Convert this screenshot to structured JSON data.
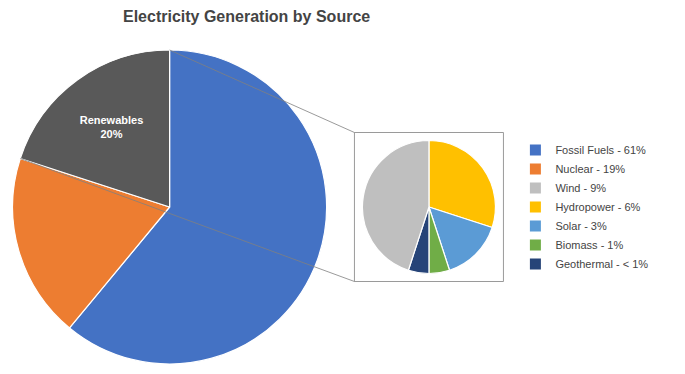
{
  "chart_data": [
    {
      "type": "pie",
      "title": "Electricity Generation by Source",
      "categories": [
        "Fossil Fuels - 61%",
        "Nuclear - 19%",
        null
      ],
      "values": [
        61,
        19,
        20
      ],
      "colors": [
        "#4472C4",
        "#ED7D31",
        "#595959"
      ],
      "value_labels": [
        null,
        null,
        "Renewables\n20%"
      ],
      "data_labels": true,
      "legend": "right"
    },
    {
      "type": "pie",
      "categories": [
        "Hydropower - 6%",
        "Solar - 3%",
        "Biomass - 1%",
        "Geothermal - < 1%",
        "Wind - 9%"
      ],
      "values": [
        6,
        3,
        1,
        1,
        9
      ],
      "colors": [
        "#FFC000",
        "#5B9BD5",
        "#70AD47",
        "#264478",
        "#BFBFBF"
      ],
      "legend": "right"
    }
  ]
}
